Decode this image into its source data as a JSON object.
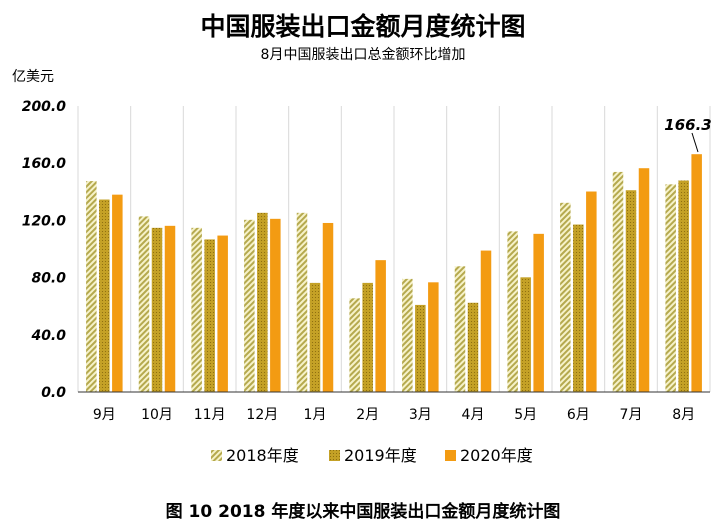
{
  "chart_data": {
    "type": "bar",
    "title": "中国服装出口金额月度统计图",
    "subtitle": "8月中国服装出口总金额环比增加",
    "ylabel": "亿美元",
    "ylim": [
      0,
      200
    ],
    "yticks": [
      "0.0",
      "40.0",
      "80.0",
      "120.0",
      "160.0",
      "200.0"
    ],
    "grid": "vertical",
    "legend_position": "bottom",
    "categories": [
      "9月",
      "10月",
      "11月",
      "12月",
      "1月",
      "2月",
      "3月",
      "4月",
      "5月",
      "6月",
      "7月",
      "8月"
    ],
    "series": [
      {
        "name": "2018年度",
        "values": [
          147.5,
          122.8,
          114.8,
          120.4,
          125.3,
          65.5,
          79.1,
          87.9,
          112.3,
          132.3,
          153.9,
          145.2
        ],
        "color": "#b5a94e",
        "pattern": "stripes"
      },
      {
        "name": "2019年度",
        "values": [
          134.6,
          114.8,
          106.7,
          125.3,
          76.3,
          76.3,
          60.9,
          62.4,
          80.2,
          117.1,
          141.1,
          147.9
        ],
        "color": "#b8951f",
        "pattern": "dots"
      },
      {
        "name": "2020年度",
        "values": [
          138.0,
          116.2,
          109.4,
          121.1,
          118.2,
          92.2,
          76.7,
          98.9,
          110.6,
          140.2,
          156.5,
          166.3
        ],
        "color": "#f39b12",
        "pattern": "solid"
      }
    ],
    "annotation": {
      "text": "166.3"
    }
  },
  "caption": "图 10   2018 年度以来中国服装出口金额月度统计图"
}
